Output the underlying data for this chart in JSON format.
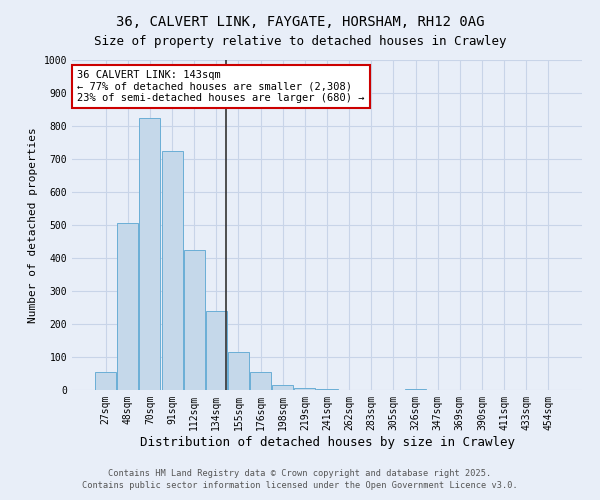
{
  "title1": "36, CALVERT LINK, FAYGATE, HORSHAM, RH12 0AG",
  "title2": "Size of property relative to detached houses in Crawley",
  "xlabel": "Distribution of detached houses by size in Crawley",
  "ylabel": "Number of detached properties",
  "categories": [
    "27sqm",
    "48sqm",
    "70sqm",
    "91sqm",
    "112sqm",
    "134sqm",
    "155sqm",
    "176sqm",
    "198sqm",
    "219sqm",
    "241sqm",
    "262sqm",
    "283sqm",
    "305sqm",
    "326sqm",
    "347sqm",
    "369sqm",
    "390sqm",
    "411sqm",
    "433sqm",
    "454sqm"
  ],
  "values": [
    55,
    505,
    825,
    725,
    425,
    240,
    115,
    55,
    15,
    5,
    3,
    0,
    0,
    0,
    3,
    0,
    0,
    0,
    0,
    0,
    0
  ],
  "bar_color": "#c5d8ea",
  "bar_edge_color": "#6aaed6",
  "vline_color": "#333333",
  "annotation_line1": "36 CALVERT LINK: 143sqm",
  "annotation_line2": "← 77% of detached houses are smaller (2,308)",
  "annotation_line3": "23% of semi-detached houses are larger (680) →",
  "annotation_box_color": "#ffffff",
  "annotation_border_color": "#cc0000",
  "ylim": [
    0,
    1000
  ],
  "yticks": [
    0,
    100,
    200,
    300,
    400,
    500,
    600,
    700,
    800,
    900,
    1000
  ],
  "grid_color": "#c8d4e8",
  "background_color": "#e8eef8",
  "fig_background_color": "#e8eef8",
  "footer1": "Contains HM Land Registry data © Crown copyright and database right 2025.",
  "footer2": "Contains public sector information licensed under the Open Government Licence v3.0.",
  "title_fontsize": 10,
  "tick_fontsize": 7,
  "xlabel_fontsize": 9,
  "ylabel_fontsize": 8
}
